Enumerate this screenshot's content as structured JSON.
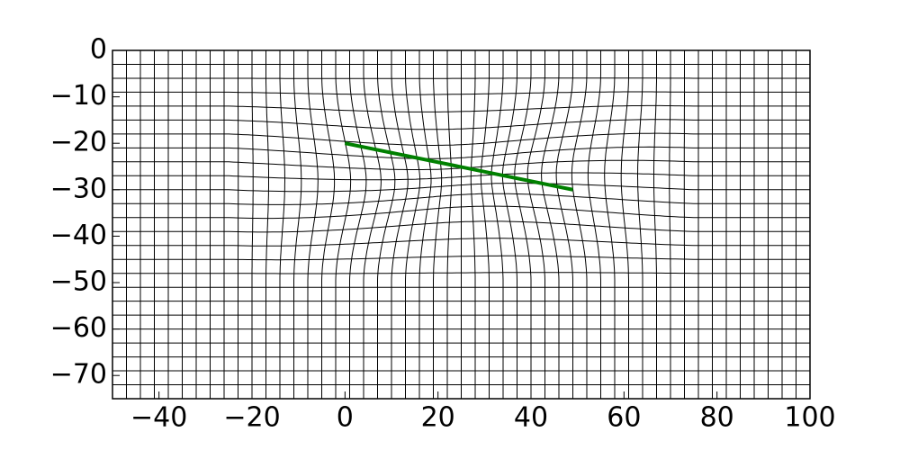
{
  "chart_data": {
    "type": "line",
    "xlim": [
      -50,
      100
    ],
    "ylim": [
      -75,
      0
    ],
    "xticks": [
      {
        "value": -40,
        "label": "−40"
      },
      {
        "value": -20,
        "label": "−20"
      },
      0,
      20,
      40,
      60,
      80,
      100
    ],
    "yticks": [
      0,
      {
        "value": -10,
        "label": "−10"
      },
      {
        "value": -20,
        "label": "−20"
      },
      {
        "value": -30,
        "label": "−30"
      },
      {
        "value": -40,
        "label": "−40"
      },
      {
        "value": -50,
        "label": "−50"
      },
      {
        "value": -60,
        "label": "−60"
      },
      {
        "value": -70,
        "label": "−70"
      }
    ],
    "series": [
      {
        "color": "#008000",
        "x": [
          0,
          49
        ],
        "values": [
          -20,
          -30
        ]
      }
    ]
  }
}
